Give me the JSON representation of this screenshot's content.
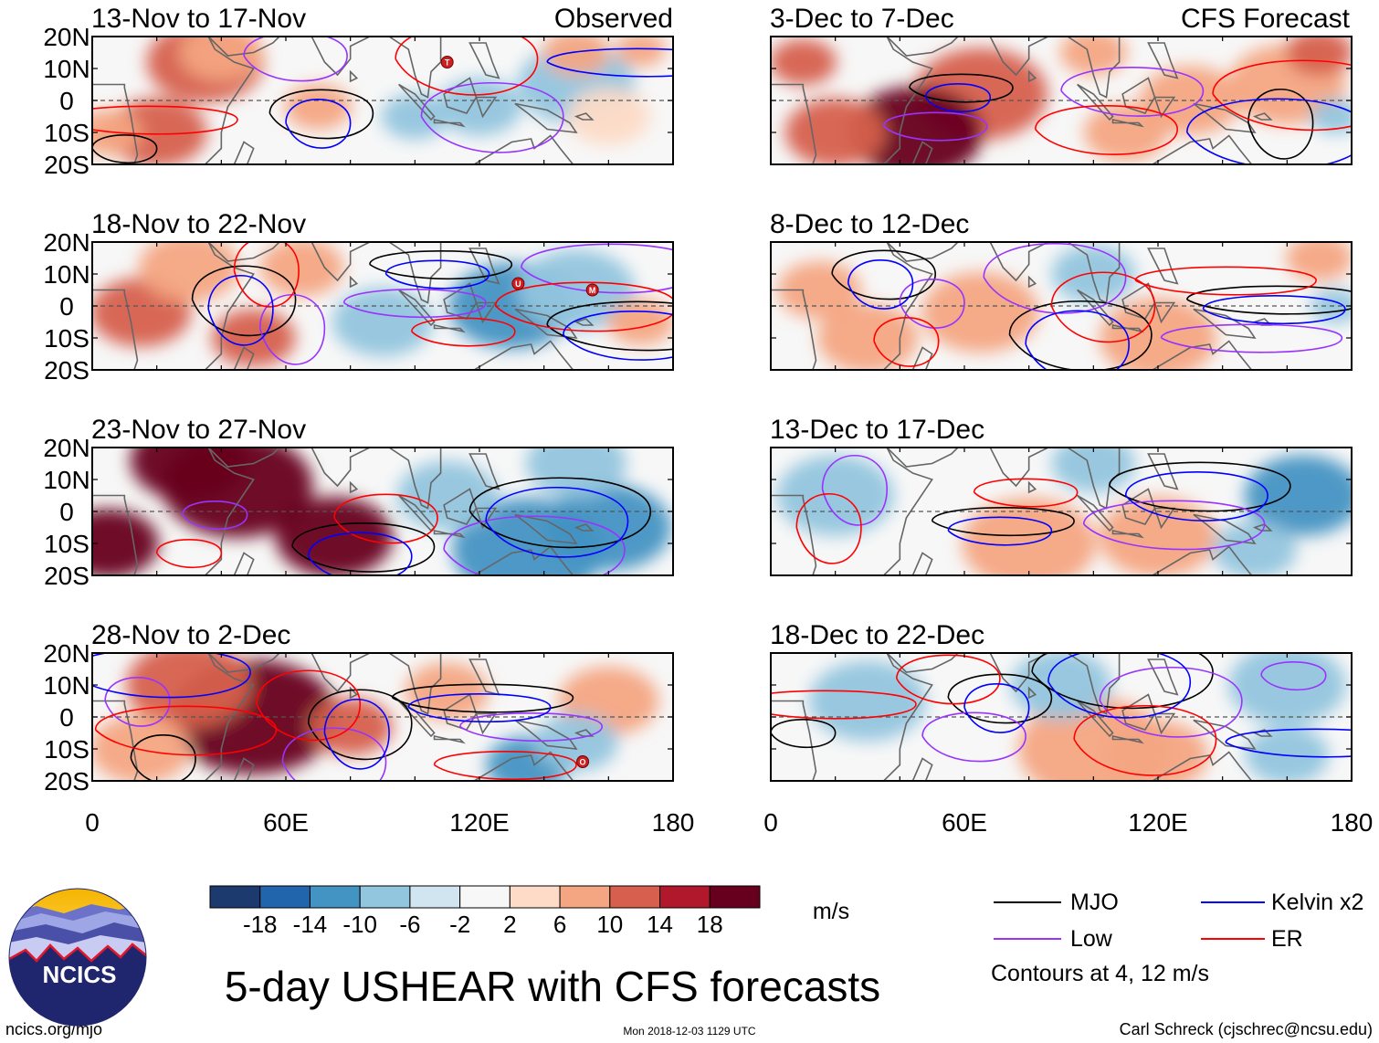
{
  "chart_data": {
    "type": "heatmap",
    "variable": "5-day USHEAR with CFS forecasts",
    "units": "m/s",
    "header_left": "Observed",
    "header_right": "CFS Forecast",
    "lat_ticks": [
      "20N",
      "10N",
      "0",
      "10S",
      "20S"
    ],
    "lat_values": [
      20,
      10,
      0,
      -10,
      -20
    ],
    "lon_ticks": [
      "0",
      "60E",
      "120E",
      "180"
    ],
    "lon_values": [
      0,
      60,
      120,
      180
    ],
    "xlim": [
      0,
      180
    ],
    "ylim": [
      -20,
      20
    ],
    "panels": [
      {
        "title": "13-Nov to 17-Nov",
        "column": "left",
        "row": 0,
        "kind": "observed",
        "cells": [
          [
            35,
            12,
            14,
            2
          ],
          [
            20,
            -10,
            12,
            2
          ],
          [
            5,
            -10,
            8,
            1
          ],
          [
            70,
            -2,
            8,
            1
          ],
          [
            40,
            15,
            10,
            1
          ],
          [
            120,
            -2,
            10,
            -1
          ],
          [
            150,
            5,
            14,
            -1
          ],
          [
            160,
            -5,
            10,
            0.5
          ],
          [
            100,
            -5,
            8,
            -1
          ],
          [
            150,
            15,
            8,
            1
          ],
          [
            170,
            16,
            6,
            1
          ]
        ],
        "storms": [
          {
            "label": "T",
            "lon": 110,
            "lat": 12
          }
        ]
      },
      {
        "title": "18-Nov to 22-Nov",
        "column": "left",
        "row": 1,
        "kind": "observed",
        "cells": [
          [
            15,
            -2,
            12,
            2
          ],
          [
            50,
            -10,
            10,
            2
          ],
          [
            30,
            12,
            12,
            1
          ],
          [
            90,
            -5,
            12,
            -1
          ],
          [
            130,
            0,
            15,
            -2
          ],
          [
            150,
            5,
            14,
            -1
          ],
          [
            65,
            12,
            10,
            1
          ],
          [
            170,
            -5,
            8,
            1
          ]
        ],
        "storms": [
          {
            "label": "U",
            "lon": 132,
            "lat": 7
          },
          {
            "label": "M",
            "lon": 155,
            "lat": 5
          }
        ]
      },
      {
        "title": "23-Nov to 27-Nov",
        "column": "left",
        "row": 2,
        "kind": "observed",
        "cells": [
          [
            5,
            -10,
            12,
            3
          ],
          [
            45,
            8,
            18,
            3
          ],
          [
            75,
            -8,
            14,
            3
          ],
          [
            30,
            16,
            14,
            3
          ],
          [
            135,
            -12,
            18,
            -2
          ],
          [
            160,
            -5,
            15,
            -2
          ],
          [
            150,
            15,
            12,
            -1
          ],
          [
            110,
            5,
            12,
            -1
          ]
        ],
        "storms": []
      },
      {
        "title": "28-Nov to 2-Dec",
        "column": "left",
        "row": 3,
        "kind": "observed",
        "cells": [
          [
            50,
            0,
            20,
            3
          ],
          [
            30,
            10,
            15,
            2
          ],
          [
            80,
            -3,
            10,
            2
          ],
          [
            15,
            -10,
            12,
            1
          ],
          [
            135,
            -15,
            10,
            -2
          ],
          [
            160,
            5,
            12,
            1
          ],
          [
            110,
            8,
            10,
            1
          ],
          [
            150,
            -8,
            10,
            -1
          ]
        ],
        "storms": [
          {
            "label": "O",
            "lon": 152,
            "lat": -14
          }
        ]
      },
      {
        "title": "3-Dec to 7-Dec",
        "column": "right",
        "row": 0,
        "kind": "forecast",
        "cells": [
          [
            65,
            2,
            16,
            2
          ],
          [
            45,
            -10,
            16,
            3
          ],
          [
            20,
            -10,
            12,
            2
          ],
          [
            130,
            0,
            12,
            1
          ],
          [
            160,
            5,
            14,
            1
          ],
          [
            170,
            15,
            8,
            2
          ],
          [
            10,
            12,
            8,
            2
          ],
          [
            110,
            -10,
            10,
            1
          ],
          [
            100,
            15,
            8,
            1
          ],
          [
            175,
            -5,
            6,
            -1
          ]
        ],
        "storms": []
      },
      {
        "title": "8-Dec to 12-Dec",
        "column": "right",
        "row": 1,
        "kind": "forecast",
        "cells": [
          [
            65,
            -2,
            14,
            1
          ],
          [
            120,
            -10,
            14,
            1
          ],
          [
            30,
            -10,
            12,
            1
          ],
          [
            175,
            0,
            6,
            -1
          ],
          [
            100,
            10,
            10,
            -1
          ],
          [
            170,
            15,
            8,
            1
          ],
          [
            15,
            5,
            10,
            1
          ]
        ],
        "storms": []
      },
      {
        "title": "13-Dec to 17-Dec",
        "column": "right",
        "row": 2,
        "kind": "forecast",
        "cells": [
          [
            80,
            -10,
            16,
            1
          ],
          [
            120,
            -8,
            14,
            1
          ],
          [
            165,
            5,
            14,
            -2
          ],
          [
            20,
            5,
            14,
            -1
          ],
          [
            100,
            15,
            10,
            -1
          ],
          [
            150,
            -12,
            10,
            -1
          ]
        ],
        "storms": []
      },
      {
        "title": "18-Dec to 22-Dec",
        "column": "right",
        "row": 3,
        "kind": "forecast",
        "cells": [
          [
            100,
            -10,
            18,
            1
          ],
          [
            120,
            -12,
            12,
            1
          ],
          [
            160,
            10,
            14,
            -1
          ],
          [
            30,
            5,
            14,
            -1
          ],
          [
            90,
            10,
            12,
            -1
          ],
          [
            160,
            -12,
            10,
            -1
          ]
        ],
        "storms": []
      }
    ],
    "colorbar": {
      "levels": [
        -18,
        -14,
        -10,
        -6,
        -2,
        2,
        6,
        10,
        14,
        18
      ],
      "labels": [
        "-18",
        "-14",
        "-10",
        "-6",
        "-2",
        "2",
        "6",
        "10",
        "14",
        "18"
      ],
      "colors": [
        "#1c3a6e",
        "#2166ac",
        "#4393c3",
        "#92c5de",
        "#d1e5f0",
        "#f7f7f7",
        "#fddbc7",
        "#f4a582",
        "#d6604d",
        "#b2182b",
        "#67001f"
      ]
    },
    "contour_legend": [
      {
        "label": "MJO",
        "color": "#000000"
      },
      {
        "label": "Kelvin x2",
        "color": "#0000ff"
      },
      {
        "label": "Low",
        "color": "#9933ff"
      },
      {
        "label": "ER",
        "color": "#ff0000"
      }
    ],
    "contour_note": "Contours at 4, 12 m/s"
  },
  "footer": {
    "logo_text": "NCICS",
    "url": "ncics.org/mjo",
    "timestamp": "Mon 2018-12-03 1129 UTC",
    "author": "Carl Schreck (cjschrec@ncsu.edu)",
    "main_title": "5-day USHEAR with CFS forecasts",
    "units_label": "m/s"
  }
}
